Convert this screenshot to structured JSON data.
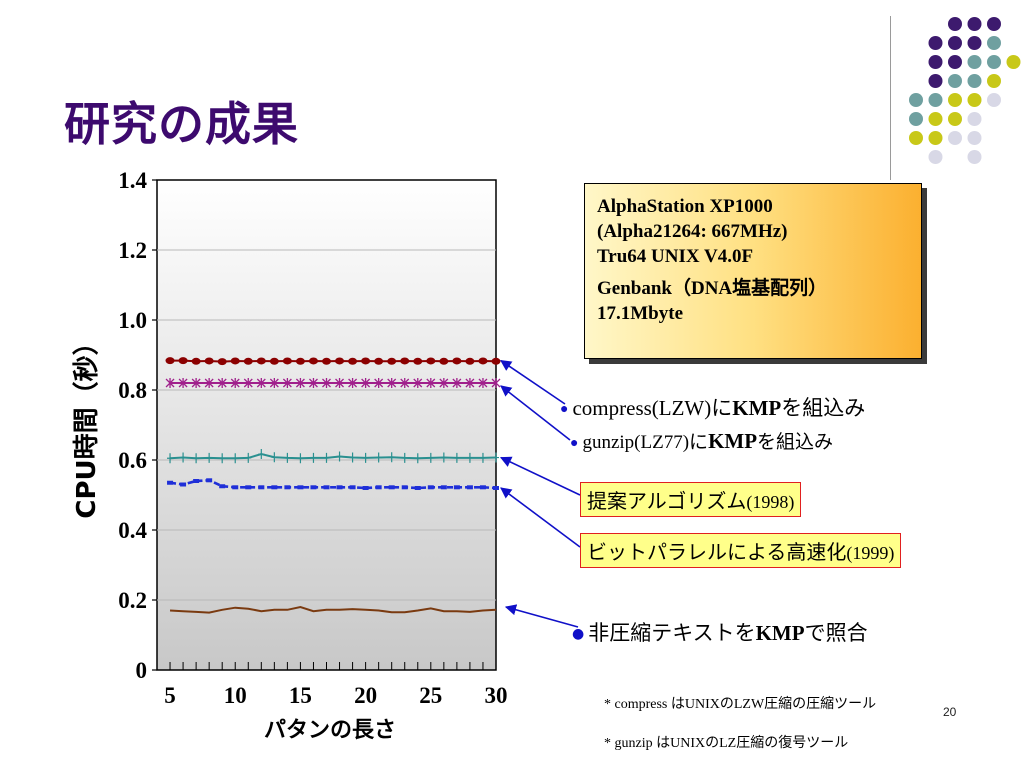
{
  "title": "研究の成果",
  "info_box": {
    "lines": [
      "AlphaStation XP1000",
      "(Alpha21264: 667MHz)",
      "Tru64 UNIX V4.0F"
    ],
    "data_lines": [
      "Genbank（DNA塩基配列）",
      "17.1Mbyte"
    ]
  },
  "annotations": {
    "compress_kmp": {
      "prefix": "compress(LZW)に",
      "bold": "KMP",
      "suffix": "を組込み"
    },
    "gunzip_kmp": {
      "prefix": "gunzip(LZ77)に",
      "bold": "KMP",
      "suffix": "を組込み"
    },
    "proposed": {
      "text": "提案アルゴリズム",
      "year": "(1998)"
    },
    "bitparallel": {
      "text": "ビットパラレルによる高速化",
      "year": "(1999)"
    },
    "plain_kmp": {
      "prefix": "非圧縮テキストを",
      "bold": "KMP",
      "suffix": "で照合"
    }
  },
  "footnotes": [
    "* compress はUNIXのLZW圧縮の圧縮ツール",
    "* gunzip はUNIXのLZ圧縮の復号ツール"
  ],
  "page_number": "20",
  "colors": {
    "title": "#3d0a6e",
    "arrow": "#1010c8",
    "compress": "#8b0000",
    "gunzip": "#a0208c",
    "proposed": "#2a9090",
    "bitparallel": "#1f2fd8",
    "plain": "#7a3a10"
  },
  "chart_data": {
    "type": "line",
    "xlabel": "パタンの長さ",
    "ylabel": "CPU時間（秒）",
    "xlim": [
      4,
      30
    ],
    "ylim": [
      0,
      1.4
    ],
    "x_ticks": [
      "5",
      "10",
      "15",
      "20",
      "25",
      "30"
    ],
    "y_ticks": [
      "0",
      "0.2",
      "0.4",
      "0.6",
      "0.8",
      "1.0",
      "1.2",
      "1.4"
    ],
    "x": [
      5,
      6,
      7,
      8,
      9,
      10,
      11,
      12,
      13,
      14,
      15,
      16,
      17,
      18,
      19,
      20,
      21,
      22,
      23,
      24,
      25,
      26,
      27,
      28,
      29,
      30
    ],
    "series": [
      {
        "name": "compress(LZW)にKMPを組込み",
        "marker": "circle",
        "values": [
          0.884,
          0.884,
          0.882,
          0.883,
          0.881,
          0.883,
          0.882,
          0.883,
          0.882,
          0.883,
          0.882,
          0.883,
          0.882,
          0.883,
          0.882,
          0.883,
          0.882,
          0.882,
          0.883,
          0.882,
          0.883,
          0.882,
          0.883,
          0.882,
          0.883,
          0.882
        ]
      },
      {
        "name": "gunzip(LZ77)にKMPを組込み",
        "marker": "star",
        "values": [
          0.82,
          0.82,
          0.82,
          0.82,
          0.82,
          0.82,
          0.82,
          0.82,
          0.82,
          0.82,
          0.82,
          0.82,
          0.82,
          0.82,
          0.82,
          0.82,
          0.82,
          0.82,
          0.82,
          0.82,
          0.82,
          0.82,
          0.82,
          0.82,
          0.82,
          0.82
        ]
      },
      {
        "name": "提案アルゴリズム(1998)",
        "marker": "plus",
        "values": [
          0.605,
          0.607,
          0.605,
          0.606,
          0.605,
          0.605,
          0.606,
          0.617,
          0.608,
          0.606,
          0.605,
          0.606,
          0.606,
          0.61,
          0.607,
          0.606,
          0.607,
          0.608,
          0.606,
          0.605,
          0.606,
          0.607,
          0.606,
          0.606,
          0.606,
          0.607
        ]
      },
      {
        "name": "ビットパラレルによる高速化(1999)",
        "marker": "dash",
        "values": [
          0.535,
          0.53,
          0.54,
          0.542,
          0.525,
          0.522,
          0.522,
          0.522,
          0.522,
          0.522,
          0.522,
          0.522,
          0.522,
          0.522,
          0.522,
          0.52,
          0.522,
          0.522,
          0.522,
          0.52,
          0.522,
          0.522,
          0.522,
          0.522,
          0.522,
          0.52
        ]
      },
      {
        "name": "非圧縮テキストをKMPで照合",
        "marker": "none",
        "values": [
          0.17,
          0.168,
          0.166,
          0.164,
          0.172,
          0.178,
          0.175,
          0.168,
          0.172,
          0.172,
          0.18,
          0.168,
          0.172,
          0.172,
          0.174,
          0.172,
          0.17,
          0.165,
          0.165,
          0.17,
          0.176,
          0.168,
          0.168,
          0.166,
          0.17,
          0.172
        ]
      }
    ]
  }
}
